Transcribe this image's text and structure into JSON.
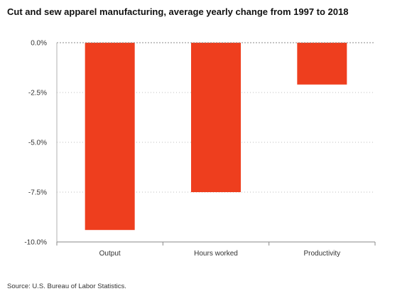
{
  "chart_data": {
    "type": "bar",
    "title": "Cut and sew apparel manufacturing, average yearly change from 1997 to 2018",
    "categories": [
      "Output",
      "Hours worked",
      "Productivity"
    ],
    "values": [
      -9.4,
      -7.5,
      -2.1
    ],
    "ylim": [
      -10,
      0
    ],
    "yticks": [
      0,
      -2.5,
      -5,
      -7.5,
      -10
    ],
    "ytick_labels": [
      "0.0%",
      "-2.5%",
      "-5.0%",
      "-7.5%",
      "-10.0%"
    ],
    "xlabel": "",
    "ylabel": "",
    "grid": "horizontal dotted",
    "legend": "none",
    "bar_color": "#ee3e1e"
  },
  "source": "Source: U.S. Bureau of Labor Statistics."
}
